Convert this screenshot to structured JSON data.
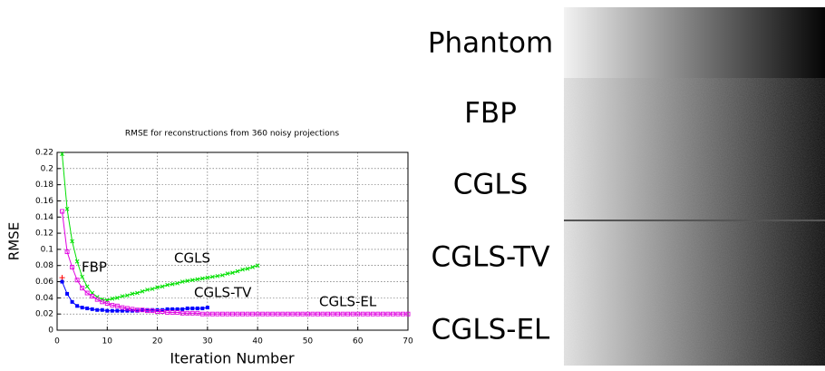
{
  "chart_data": {
    "type": "line",
    "title": "RMSE for reconstructions from 360 noisy projections",
    "x_label": "Iteration Number",
    "y_label": "RMSE",
    "xlim": [
      0,
      70
    ],
    "xticks": [
      0,
      10,
      20,
      30,
      40,
      50,
      60,
      70
    ],
    "ylim": [
      0,
      0.22
    ],
    "yticks": [
      0,
      0.02,
      0.04,
      0.06,
      0.08,
      0.1,
      0.12,
      0.14,
      0.16,
      0.18,
      0.2,
      0.22
    ],
    "grid": true,
    "series": [
      {
        "name": "FBP",
        "color": "#ff0000",
        "marker": "plus",
        "x": [
          1
        ],
        "values": [
          0.065
        ]
      },
      {
        "name": "CGLS",
        "color": "#00e000",
        "marker": "cross",
        "x": [
          1,
          2,
          3,
          4,
          5,
          6,
          7,
          8,
          9,
          10,
          11,
          12,
          13,
          14,
          15,
          16,
          17,
          18,
          19,
          20,
          21,
          22,
          23,
          24,
          25,
          26,
          27,
          28,
          29,
          30,
          31,
          32,
          33,
          34,
          35,
          36,
          37,
          38,
          39,
          40
        ],
        "values": [
          0.218,
          0.15,
          0.11,
          0.085,
          0.066,
          0.054,
          0.046,
          0.041,
          0.038,
          0.037,
          0.039,
          0.04,
          0.042,
          0.043,
          0.045,
          0.046,
          0.048,
          0.05,
          0.051,
          0.053,
          0.054,
          0.056,
          0.057,
          0.058,
          0.06,
          0.061,
          0.062,
          0.063,
          0.064,
          0.065,
          0.066,
          0.067,
          0.068,
          0.07,
          0.071,
          0.073,
          0.075,
          0.076,
          0.078,
          0.08
        ]
      },
      {
        "name": "CGLS-TV",
        "color": "#0000ff",
        "marker": "square-filled",
        "x": [
          1,
          2,
          3,
          4,
          5,
          6,
          7,
          8,
          9,
          10,
          11,
          12,
          13,
          14,
          15,
          16,
          17,
          18,
          19,
          20,
          21,
          22,
          23,
          24,
          25,
          26,
          27,
          28,
          29,
          30
        ],
        "values": [
          0.06,
          0.045,
          0.035,
          0.03,
          0.028,
          0.027,
          0.026,
          0.025,
          0.025,
          0.024,
          0.024,
          0.024,
          0.024,
          0.024,
          0.024,
          0.024,
          0.025,
          0.025,
          0.025,
          0.025,
          0.025,
          0.026,
          0.026,
          0.026,
          0.026,
          0.027,
          0.027,
          0.027,
          0.027,
          0.028
        ]
      },
      {
        "name": "CGLS-EL",
        "color": "#e000e0",
        "marker": "square-open",
        "x": [
          1,
          2,
          3,
          4,
          5,
          6,
          7,
          8,
          9,
          10,
          11,
          12,
          13,
          14,
          15,
          16,
          17,
          18,
          19,
          20,
          21,
          22,
          23,
          24,
          25,
          26,
          27,
          28,
          29,
          30,
          31,
          32,
          33,
          34,
          35,
          36,
          37,
          38,
          39,
          40,
          41,
          42,
          43,
          44,
          45,
          46,
          47,
          48,
          49,
          50,
          51,
          52,
          53,
          54,
          55,
          56,
          57,
          58,
          59,
          60,
          61,
          62,
          63,
          64,
          65,
          66,
          67,
          68,
          69,
          70
        ],
        "values": [
          0.147,
          0.097,
          0.078,
          0.062,
          0.052,
          0.046,
          0.042,
          0.038,
          0.035,
          0.033,
          0.031,
          0.03,
          0.028,
          0.027,
          0.026,
          0.025,
          0.025,
          0.024,
          0.024,
          0.023,
          0.023,
          0.022,
          0.022,
          0.022,
          0.021,
          0.021,
          0.021,
          0.021,
          0.02,
          0.02,
          0.02,
          0.02,
          0.02,
          0.02,
          0.02,
          0.02,
          0.02,
          0.02,
          0.02,
          0.02,
          0.02,
          0.02,
          0.02,
          0.02,
          0.02,
          0.02,
          0.02,
          0.02,
          0.02,
          0.02,
          0.02,
          0.02,
          0.02,
          0.02,
          0.02,
          0.02,
          0.02,
          0.02,
          0.02,
          0.02,
          0.02,
          0.02,
          0.02,
          0.02,
          0.02,
          0.02,
          0.02,
          0.02,
          0.02,
          0.02
        ]
      }
    ]
  },
  "panels": [
    "Phantom",
    "FBP",
    "CGLS",
    "CGLS-TV",
    "CGLS-EL"
  ]
}
